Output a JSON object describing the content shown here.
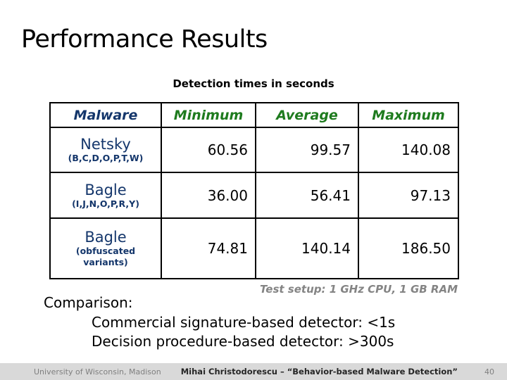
{
  "slide": {
    "title": "Performance Results"
  },
  "table": {
    "caption": "Detection times in seconds",
    "columns": [
      "Malware",
      "Minimum",
      "Average",
      "Maximum"
    ],
    "rows": [
      {
        "name": "Netsky",
        "variants": "(B,C,D,O,P,T,W)",
        "minimum": "60.56",
        "average": "99.57",
        "maximum": "140.08"
      },
      {
        "name": "Bagle",
        "variants": "(I,J,N,O,P,R,Y)",
        "minimum": "36.00",
        "average": "56.41",
        "maximum": "97.13"
      },
      {
        "name": "Bagle",
        "variants": "(obfuscated variants)",
        "minimum": "74.81",
        "average": "140.14",
        "maximum": "186.50"
      }
    ]
  },
  "notes": {
    "test_setup": "Test setup: 1 GHz CPU, 1 GB RAM",
    "comparison_label": "Comparison:",
    "comparison_lines": [
      "Commercial signature-based detector: <1s",
      "Decision procedure-based detector: >300s"
    ]
  },
  "footer": {
    "left": "University of Wisconsin, Madison",
    "center": "Mihai Christodorescu – “Behavior-based Malware Detection”",
    "right_page_number": "40"
  },
  "colors": {
    "malware_navy": "#14366b",
    "metric_green": "#1e7b1e",
    "muted_gray": "#848484",
    "footer_background": "#d9d9d9",
    "text_black": "#000000"
  }
}
